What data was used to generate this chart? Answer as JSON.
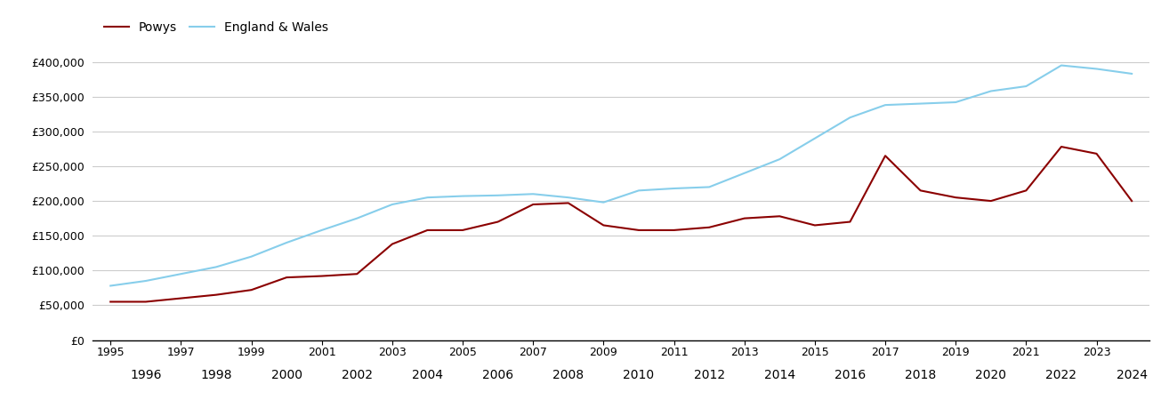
{
  "powys_years": [
    1995,
    1996,
    1997,
    1998,
    1999,
    2000,
    2001,
    2002,
    2003,
    2004,
    2005,
    2006,
    2007,
    2008,
    2009,
    2010,
    2011,
    2012,
    2013,
    2014,
    2015,
    2016,
    2017,
    2018,
    2019,
    2020,
    2021,
    2022,
    2023,
    2024
  ],
  "powys_values": [
    55000,
    55000,
    60000,
    65000,
    72000,
    90000,
    92000,
    95000,
    138000,
    158000,
    158000,
    170000,
    195000,
    197000,
    165000,
    158000,
    158000,
    162000,
    175000,
    178000,
    165000,
    170000,
    265000,
    215000,
    205000,
    200000,
    215000,
    278000,
    268000,
    200000
  ],
  "ew_years": [
    1995,
    1996,
    1997,
    1998,
    1999,
    2000,
    2001,
    2002,
    2003,
    2004,
    2005,
    2006,
    2007,
    2008,
    2009,
    2010,
    2011,
    2012,
    2013,
    2014,
    2015,
    2016,
    2017,
    2018,
    2019,
    2020,
    2021,
    2022,
    2023,
    2024
  ],
  "ew_values": [
    78000,
    85000,
    95000,
    105000,
    120000,
    140000,
    158000,
    175000,
    195000,
    205000,
    207000,
    208000,
    210000,
    205000,
    198000,
    215000,
    218000,
    220000,
    240000,
    260000,
    290000,
    320000,
    338000,
    340000,
    342000,
    358000,
    365000,
    395000,
    390000,
    383000
  ],
  "powys_color": "#8B0000",
  "ew_color": "#87CEEB",
  "powys_label": "Powys",
  "ew_label": "England & Wales",
  "ylim": [
    0,
    420000
  ],
  "yticks": [
    0,
    50000,
    100000,
    150000,
    200000,
    250000,
    300000,
    350000,
    400000
  ],
  "xlim_min": 1994.5,
  "xlim_max": 2024.5,
  "odd_xticks": [
    1995,
    1997,
    1999,
    2001,
    2003,
    2005,
    2007,
    2009,
    2011,
    2013,
    2015,
    2017,
    2019,
    2021,
    2023
  ],
  "even_xticks": [
    1996,
    1998,
    2000,
    2002,
    2004,
    2006,
    2008,
    2010,
    2012,
    2014,
    2016,
    2018,
    2020,
    2022,
    2024
  ],
  "background_color": "#ffffff",
  "grid_color": "#cccccc",
  "line_width": 1.5,
  "tick_fontsize": 9,
  "legend_fontsize": 10
}
